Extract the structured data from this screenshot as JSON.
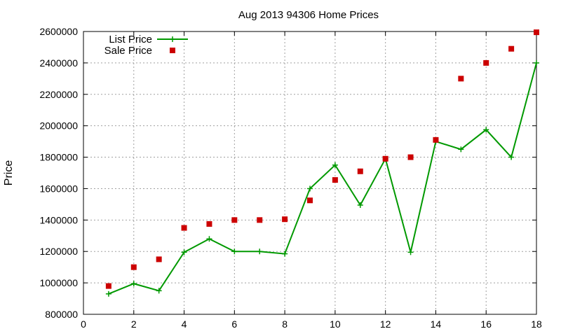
{
  "chart_data": {
    "type": "line",
    "title": "Aug 2013 94306 Home Prices",
    "xlabel": "",
    "ylabel": "Price",
    "xlim": [
      0,
      18
    ],
    "ylim": [
      800000,
      2600000
    ],
    "x_ticks": [
      0,
      2,
      4,
      6,
      8,
      10,
      12,
      14,
      16,
      18
    ],
    "y_ticks": [
      800000,
      1000000,
      1200000,
      1400000,
      1600000,
      1800000,
      2000000,
      2200000,
      2400000,
      2600000
    ],
    "grid": true,
    "legend_position": "top-left",
    "series": [
      {
        "name": "List Price",
        "style": "linespoints",
        "color": "#009900",
        "x": [
          1,
          2,
          3,
          4,
          5,
          6,
          7,
          8,
          9,
          10,
          11,
          12,
          13,
          14,
          15,
          16,
          17,
          18
        ],
        "values": [
          930000,
          995000,
          950000,
          1195000,
          1280000,
          1200000,
          1200000,
          1185000,
          1600000,
          1750000,
          1495000,
          1790000,
          1195000,
          1900000,
          1850000,
          1975000,
          1800000,
          2400000
        ]
      },
      {
        "name": "Sale Price",
        "style": "points",
        "color": "#cc0000",
        "x": [
          1,
          2,
          3,
          4,
          5,
          6,
          7,
          8,
          9,
          10,
          11,
          12,
          13,
          14,
          15,
          16,
          17,
          18
        ],
        "values": [
          980000,
          1100000,
          1150000,
          1350000,
          1375000,
          1400000,
          1400000,
          1405000,
          1525000,
          1655000,
          1710000,
          1790000,
          1800000,
          1910000,
          2300000,
          2400000,
          2490000,
          2595000
        ]
      }
    ]
  }
}
